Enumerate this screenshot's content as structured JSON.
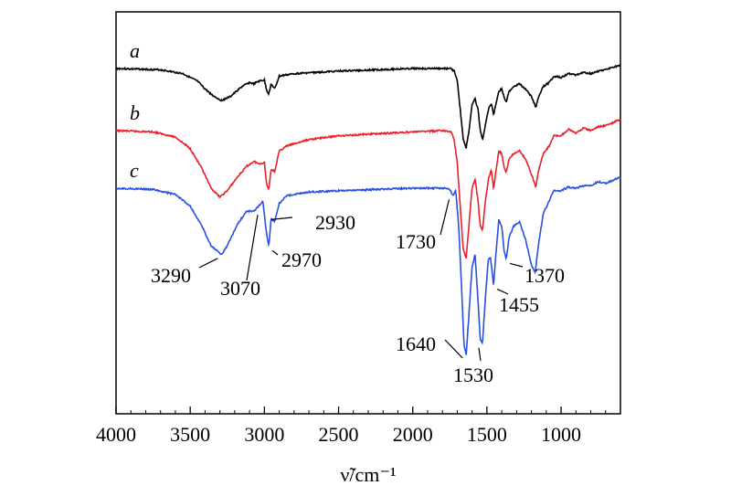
{
  "chart_data": {
    "type": "line",
    "title": "",
    "xlabel": "ν̃/cm⁻¹",
    "ylabel": "",
    "xlim": [
      4000,
      600
    ],
    "xaxis_reversed": true,
    "x_ticks": [
      4000,
      3500,
      3000,
      2500,
      2000,
      1500,
      1000
    ],
    "legend": "none",
    "grid": false,
    "series": [
      {
        "name": "a",
        "color": "#000000",
        "points": [
          [
            4000,
            0.0
          ],
          [
            3700,
            0.01
          ],
          [
            3550,
            0.04
          ],
          [
            3450,
            0.1
          ],
          [
            3400,
            0.16
          ],
          [
            3350,
            0.21
          ],
          [
            3290,
            0.25
          ],
          [
            3230,
            0.22
          ],
          [
            3150,
            0.14
          ],
          [
            3100,
            0.11
          ],
          [
            3070,
            0.12
          ],
          [
            3040,
            0.1
          ],
          [
            3000,
            0.09
          ],
          [
            2985,
            0.17
          ],
          [
            2970,
            0.2
          ],
          [
            2955,
            0.12
          ],
          [
            2930,
            0.16
          ],
          [
            2900,
            0.06
          ],
          [
            2800,
            0.04
          ],
          [
            2500,
            0.02
          ],
          [
            2000,
            0.0
          ],
          [
            1800,
            0.0
          ],
          [
            1745,
            0.0
          ],
          [
            1720,
            0.02
          ],
          [
            1700,
            0.1
          ],
          [
            1680,
            0.32
          ],
          [
            1660,
            0.55
          ],
          [
            1640,
            0.62
          ],
          [
            1620,
            0.48
          ],
          [
            1600,
            0.28
          ],
          [
            1580,
            0.24
          ],
          [
            1560,
            0.32
          ],
          [
            1545,
            0.48
          ],
          [
            1530,
            0.56
          ],
          [
            1510,
            0.44
          ],
          [
            1490,
            0.32
          ],
          [
            1470,
            0.27
          ],
          [
            1455,
            0.36
          ],
          [
            1440,
            0.28
          ],
          [
            1420,
            0.18
          ],
          [
            1400,
            0.16
          ],
          [
            1385,
            0.22
          ],
          [
            1370,
            0.26
          ],
          [
            1350,
            0.18
          ],
          [
            1320,
            0.14
          ],
          [
            1280,
            0.12
          ],
          [
            1240,
            0.16
          ],
          [
            1200,
            0.22
          ],
          [
            1170,
            0.3
          ],
          [
            1150,
            0.22
          ],
          [
            1120,
            0.14
          ],
          [
            1080,
            0.11
          ],
          [
            1050,
            0.06
          ],
          [
            1000,
            0.07
          ],
          [
            950,
            0.04
          ],
          [
            900,
            0.05
          ],
          [
            850,
            0.03
          ],
          [
            800,
            0.04
          ],
          [
            750,
            0.02
          ],
          [
            700,
            0.01
          ],
          [
            650,
            -0.01
          ],
          [
            620,
            -0.02
          ]
        ]
      },
      {
        "name": "b",
        "color": "#e8212a",
        "points": [
          [
            4000,
            0.0
          ],
          [
            3750,
            0.01
          ],
          [
            3600,
            0.05
          ],
          [
            3500,
            0.14
          ],
          [
            3420,
            0.3
          ],
          [
            3360,
            0.45
          ],
          [
            3300,
            0.52
          ],
          [
            3250,
            0.47
          ],
          [
            3180,
            0.36
          ],
          [
            3120,
            0.28
          ],
          [
            3070,
            0.24
          ],
          [
            3040,
            0.26
          ],
          [
            3000,
            0.25
          ],
          [
            2985,
            0.42
          ],
          [
            2970,
            0.46
          ],
          [
            2955,
            0.3
          ],
          [
            2930,
            0.32
          ],
          [
            2900,
            0.16
          ],
          [
            2850,
            0.12
          ],
          [
            2700,
            0.07
          ],
          [
            2500,
            0.04
          ],
          [
            2000,
            0.01
          ],
          [
            1800,
            0.0
          ],
          [
            1740,
            0.01
          ],
          [
            1720,
            0.08
          ],
          [
            1700,
            0.25
          ],
          [
            1680,
            0.6
          ],
          [
            1660,
            0.92
          ],
          [
            1640,
            1.0
          ],
          [
            1620,
            0.72
          ],
          [
            1600,
            0.45
          ],
          [
            1580,
            0.38
          ],
          [
            1560,
            0.55
          ],
          [
            1545,
            0.74
          ],
          [
            1530,
            0.78
          ],
          [
            1510,
            0.55
          ],
          [
            1490,
            0.38
          ],
          [
            1470,
            0.3
          ],
          [
            1455,
            0.46
          ],
          [
            1440,
            0.32
          ],
          [
            1420,
            0.16
          ],
          [
            1400,
            0.18
          ],
          [
            1385,
            0.28
          ],
          [
            1370,
            0.33
          ],
          [
            1350,
            0.22
          ],
          [
            1320,
            0.18
          ],
          [
            1280,
            0.16
          ],
          [
            1240,
            0.22
          ],
          [
            1200,
            0.34
          ],
          [
            1170,
            0.44
          ],
          [
            1150,
            0.3
          ],
          [
            1120,
            0.18
          ],
          [
            1080,
            0.12
          ],
          [
            1050,
            0.04
          ],
          [
            1000,
            0.04
          ],
          [
            950,
            -0.01
          ],
          [
            900,
            0.02
          ],
          [
            850,
            -0.02
          ],
          [
            800,
            0.0
          ],
          [
            750,
            -0.03
          ],
          [
            700,
            -0.04
          ],
          [
            650,
            -0.06
          ],
          [
            620,
            -0.08
          ]
        ]
      },
      {
        "name": "c",
        "color": "#2a50e0",
        "points": [
          [
            4000,
            0.0
          ],
          [
            3750,
            0.01
          ],
          [
            3600,
            0.05
          ],
          [
            3500,
            0.14
          ],
          [
            3420,
            0.3
          ],
          [
            3360,
            0.45
          ],
          [
            3290,
            0.52
          ],
          [
            3250,
            0.45
          ],
          [
            3180,
            0.28
          ],
          [
            3120,
            0.18
          ],
          [
            3070,
            0.18
          ],
          [
            3040,
            0.14
          ],
          [
            3010,
            0.1
          ],
          [
            2990,
            0.32
          ],
          [
            2970,
            0.46
          ],
          [
            2955,
            0.24
          ],
          [
            2930,
            0.26
          ],
          [
            2900,
            0.12
          ],
          [
            2850,
            0.06
          ],
          [
            2700,
            0.03
          ],
          [
            2500,
            0.02
          ],
          [
            2000,
            0.0
          ],
          [
            1800,
            0.0
          ],
          [
            1760,
            0.0
          ],
          [
            1745,
            0.02
          ],
          [
            1730,
            0.06
          ],
          [
            1710,
            0.02
          ],
          [
            1690,
            0.3
          ],
          [
            1670,
            0.8
          ],
          [
            1655,
            1.22
          ],
          [
            1640,
            1.3
          ],
          [
            1625,
            1.05
          ],
          [
            1600,
            0.62
          ],
          [
            1580,
            0.52
          ],
          [
            1560,
            0.88
          ],
          [
            1545,
            1.18
          ],
          [
            1530,
            1.22
          ],
          [
            1510,
            0.85
          ],
          [
            1490,
            0.55
          ],
          [
            1475,
            0.55
          ],
          [
            1455,
            0.76
          ],
          [
            1440,
            0.52
          ],
          [
            1420,
            0.25
          ],
          [
            1400,
            0.3
          ],
          [
            1385,
            0.48
          ],
          [
            1370,
            0.56
          ],
          [
            1350,
            0.38
          ],
          [
            1320,
            0.3
          ],
          [
            1280,
            0.26
          ],
          [
            1240,
            0.4
          ],
          [
            1200,
            0.6
          ],
          [
            1175,
            0.66
          ],
          [
            1150,
            0.42
          ],
          [
            1120,
            0.2
          ],
          [
            1080,
            0.1
          ],
          [
            1050,
            0.02
          ],
          [
            1000,
            0.02
          ],
          [
            950,
            -0.01
          ],
          [
            900,
            0.0
          ],
          [
            850,
            -0.02
          ],
          [
            800,
            -0.02
          ],
          [
            750,
            -0.05
          ],
          [
            700,
            -0.04
          ],
          [
            650,
            -0.06
          ],
          [
            620,
            -0.08
          ]
        ]
      }
    ],
    "annotations": [
      {
        "text": "2930",
        "series": 2,
        "x": 2930
      },
      {
        "text": "2970",
        "series": 2,
        "x": 2970
      },
      {
        "text": "3070",
        "series": 2,
        "x": 3070
      },
      {
        "text": "3290",
        "series": 2,
        "x": 3290
      },
      {
        "text": "1730",
        "series": 2,
        "x": 1730
      },
      {
        "text": "1640",
        "series": 2,
        "x": 1640
      },
      {
        "text": "1530",
        "series": 2,
        "x": 1530
      },
      {
        "text": "1455",
        "series": 2,
        "x": 1455
      },
      {
        "text": "1370",
        "series": 2,
        "x": 1370
      }
    ]
  }
}
